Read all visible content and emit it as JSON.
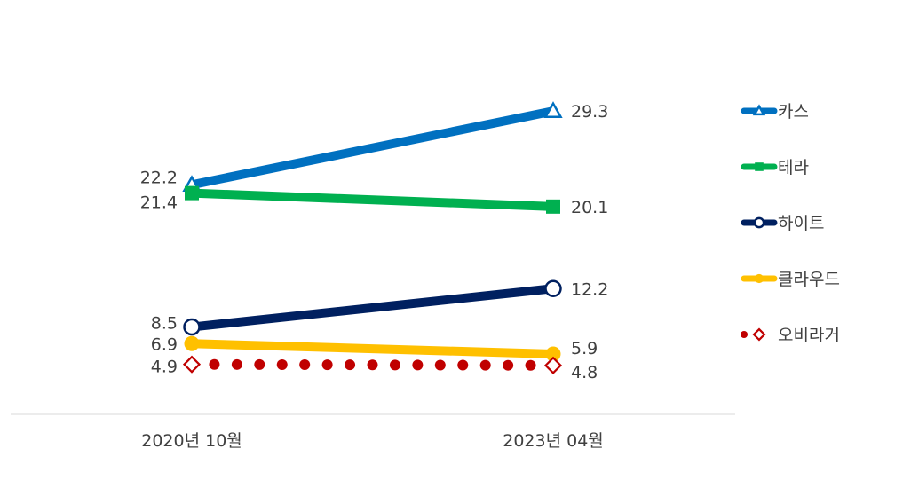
{
  "chart_data": {
    "type": "line",
    "categories": [
      "2020년 10월",
      "2023년 04월"
    ],
    "ylim": [
      0,
      32
    ],
    "grid": false,
    "legend": "right",
    "series": [
      {
        "name": "카스",
        "values": [
          22.2,
          29.3
        ],
        "color": "#0070C0",
        "marker": "triangle-open",
        "style": "solid"
      },
      {
        "name": "테라",
        "values": [
          21.4,
          20.1
        ],
        "color": "#00B050",
        "marker": "square",
        "style": "solid"
      },
      {
        "name": "하이트",
        "values": [
          8.5,
          12.2
        ],
        "color": "#002060",
        "marker": "circle-open",
        "style": "solid"
      },
      {
        "name": "클라우드",
        "values": [
          6.9,
          5.9
        ],
        "color": "#FFC000",
        "marker": "circle",
        "style": "solid"
      },
      {
        "name": "오비라거",
        "values": [
          4.9,
          4.8
        ],
        "color": "#C00000",
        "marker": "diamond-open",
        "style": "dotted"
      }
    ]
  }
}
